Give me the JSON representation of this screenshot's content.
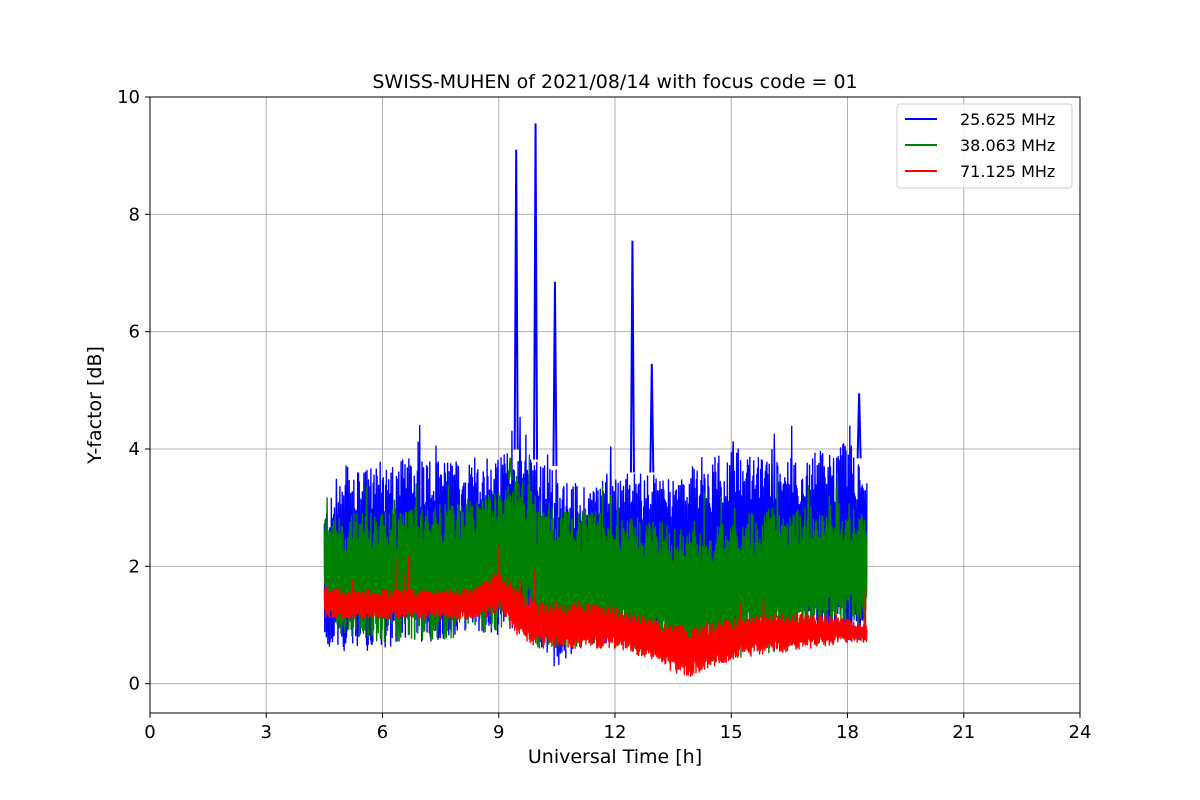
{
  "chart_data": {
    "type": "line",
    "title": "SWISS-MUHEN of 2021/08/14 with focus code = 01",
    "xlabel": "Universal Time [h]",
    "ylabel": "Y-factor [dB]",
    "xlim": [
      0,
      24
    ],
    "ylim": [
      -0.5,
      10
    ],
    "xticks": [
      0,
      3,
      6,
      9,
      12,
      15,
      18,
      21,
      24
    ],
    "yticks": [
      0,
      2,
      4,
      6,
      8,
      10
    ],
    "grid": true,
    "legend_position": "top-right",
    "series": [
      {
        "name": "25.625 MHz",
        "color": "#0000ff",
        "envelope_x": [
          4.5,
          5.0,
          6.0,
          7.0,
          8.0,
          9.0,
          9.5,
          10.0,
          10.5,
          11.0,
          12.0,
          13.0,
          13.5,
          14.0,
          15.0,
          15.5,
          16.0,
          17.0,
          18.0,
          18.5
        ],
        "envelope_low": [
          0.6,
          0.5,
          0.6,
          0.7,
          0.8,
          0.8,
          0.9,
          0.7,
          0.2,
          0.6,
          0.6,
          0.9,
          0.7,
          0.5,
          0.8,
          1.0,
          1.2,
          0.9,
          0.7,
          0.8
        ],
        "envelope_high": [
          3.0,
          3.5,
          3.8,
          3.9,
          3.8,
          3.9,
          4.0,
          3.8,
          3.7,
          3.4,
          3.6,
          3.6,
          3.5,
          3.7,
          4.0,
          3.9,
          3.8,
          3.9,
          4.2,
          3.6
        ],
        "spikes": [
          [
            9.45,
            9.1
          ],
          [
            9.95,
            9.55
          ],
          [
            10.45,
            6.85
          ],
          [
            12.45,
            7.55
          ],
          [
            12.95,
            5.45
          ],
          [
            18.3,
            4.95
          ]
        ]
      },
      {
        "name": "38.063 MHz",
        "color": "#008000",
        "envelope_x": [
          4.5,
          5.0,
          6.0,
          7.0,
          8.0,
          9.0,
          9.5,
          10.0,
          11.0,
          12.0,
          13.0,
          14.0,
          15.0,
          15.5,
          16.0,
          17.0,
          18.0,
          18.5
        ],
        "envelope_low": [
          1.2,
          0.8,
          0.7,
          0.7,
          0.8,
          0.9,
          1.0,
          0.6,
          0.6,
          0.6,
          0.6,
          0.3,
          0.4,
          0.5,
          0.5,
          0.7,
          0.9,
          1.0
        ],
        "envelope_high": [
          2.8,
          2.9,
          3.0,
          3.0,
          3.1,
          3.3,
          3.6,
          3.2,
          3.0,
          2.9,
          2.8,
          2.6,
          2.8,
          2.9,
          3.0,
          3.0,
          3.1,
          2.8
        ],
        "spikes": [
          [
            9.3,
            3.85
          ]
        ]
      },
      {
        "name": "71.125 MHz",
        "color": "#ff0000",
        "envelope_x": [
          4.5,
          5.0,
          6.0,
          7.0,
          8.0,
          8.5,
          9.0,
          9.5,
          10.0,
          11.0,
          12.0,
          13.0,
          13.5,
          14.0,
          15.0,
          16.0,
          17.0,
          18.0,
          18.5
        ],
        "envelope_low": [
          1.1,
          1.1,
          1.1,
          1.1,
          1.1,
          1.1,
          1.2,
          0.8,
          0.6,
          0.6,
          0.6,
          0.4,
          0.2,
          0.1,
          0.4,
          0.5,
          0.6,
          0.7,
          0.7
        ],
        "envelope_high": [
          1.7,
          1.6,
          1.6,
          1.6,
          1.6,
          1.7,
          2.0,
          1.6,
          1.4,
          1.4,
          1.3,
          1.1,
          1.0,
          1.0,
          1.1,
          1.2,
          1.2,
          1.1,
          1.0
        ],
        "spikes": []
      }
    ]
  }
}
